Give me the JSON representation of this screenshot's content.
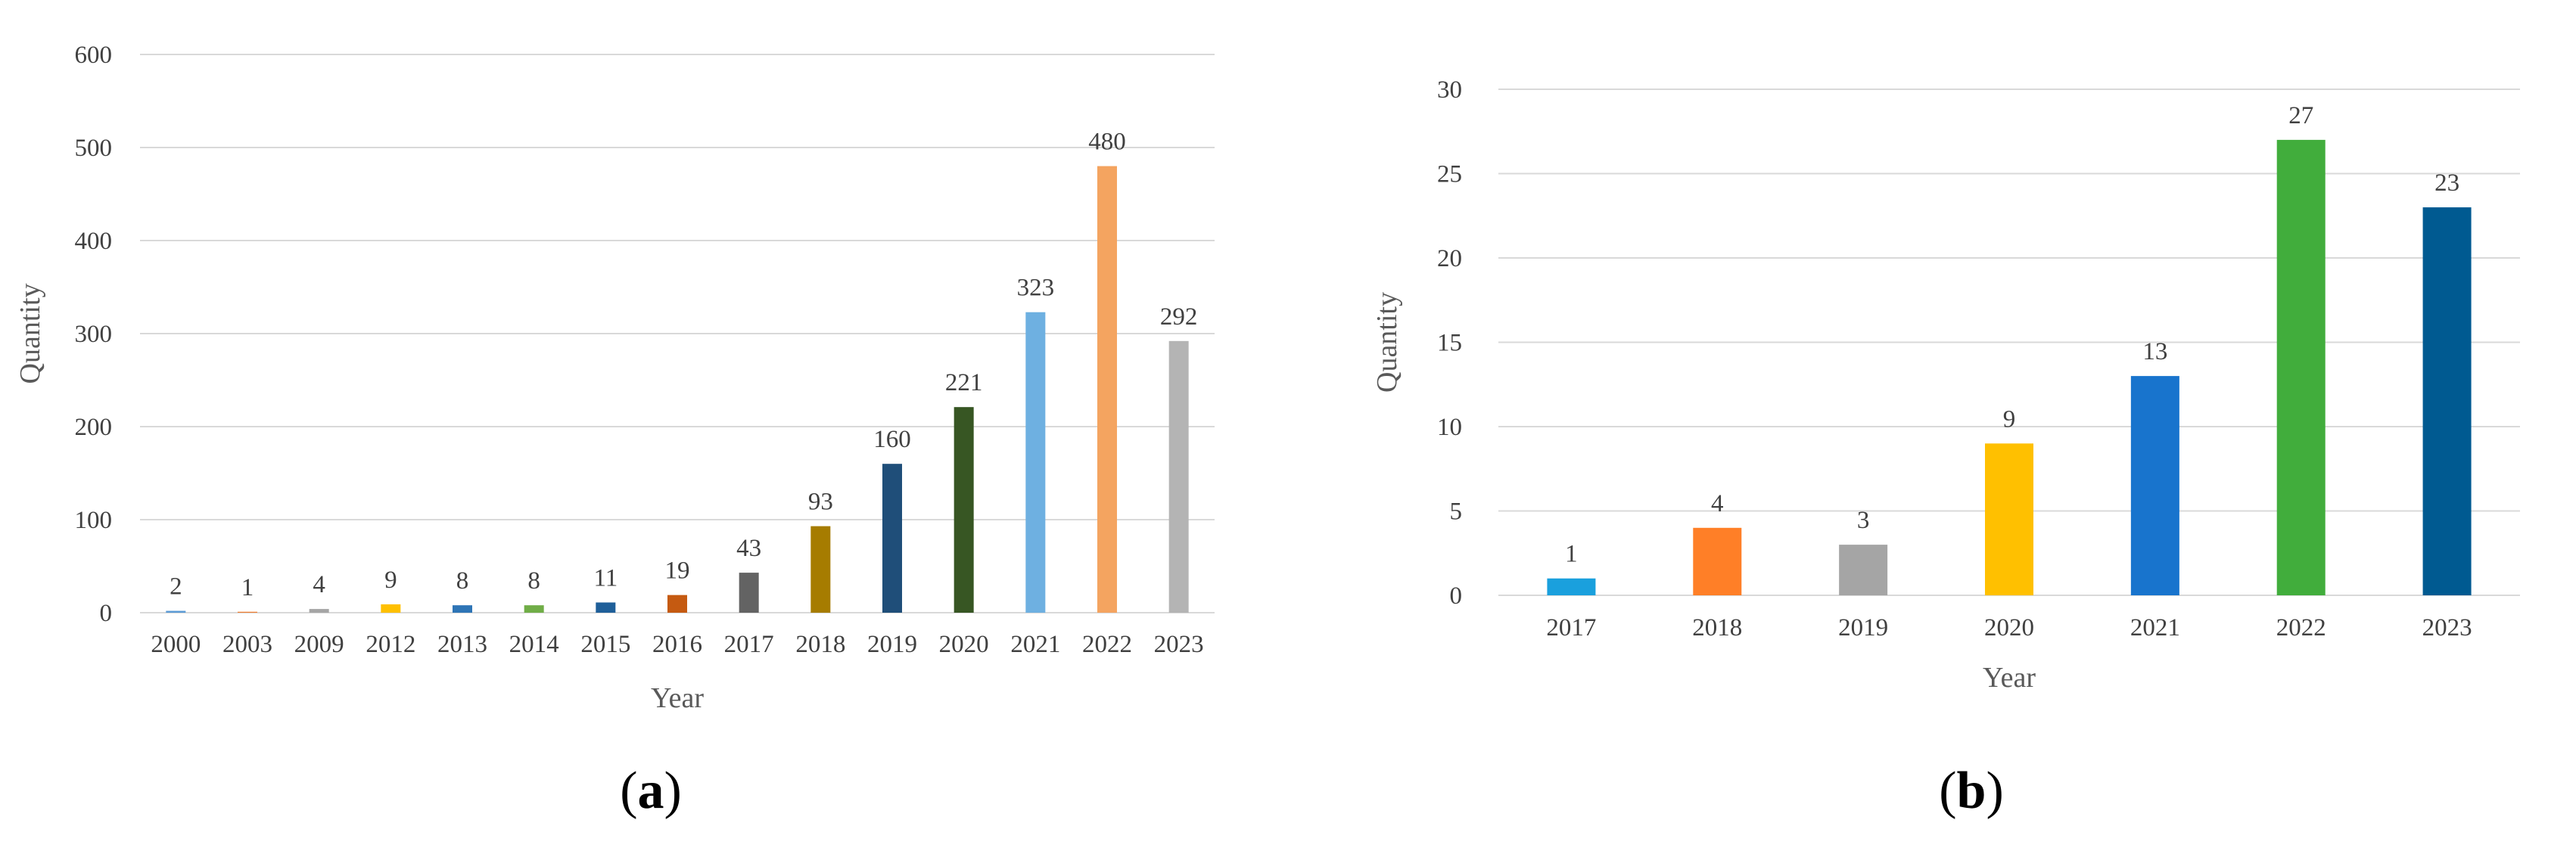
{
  "chart_data": [
    {
      "type": "bar",
      "panel": "a",
      "caption_open": "(",
      "caption_letter": "a",
      "caption_close": ")",
      "xlabel": "Year",
      "ylabel": "Quantity",
      "ylim": [
        0,
        600
      ],
      "yticks": [
        0,
        100,
        200,
        300,
        400,
        500,
        600
      ],
      "grid": true,
      "categories": [
        "2000",
        "2003",
        "2009",
        "2012",
        "2013",
        "2014",
        "2015",
        "2016",
        "2017",
        "2018",
        "2019",
        "2020",
        "2021",
        "2022",
        "2023"
      ],
      "values": [
        2,
        1,
        4,
        9,
        8,
        8,
        11,
        19,
        43,
        93,
        160,
        221,
        323,
        480,
        292
      ],
      "colors": [
        "#5B9BD5",
        "#ED7D31",
        "#A5A5A5",
        "#FFC000",
        "#2E75B6",
        "#70AD47",
        "#1F5F99",
        "#C55A11",
        "#636363",
        "#A67C00",
        "#1F4E79",
        "#375623",
        "#6EB0E1",
        "#F4A460",
        "#B4B4B4"
      ]
    },
    {
      "type": "bar",
      "panel": "b",
      "caption_open": "(",
      "caption_letter": "b",
      "caption_close": ")",
      "xlabel": "Year",
      "ylabel": "Quantity",
      "ylim": [
        0,
        30
      ],
      "yticks": [
        0,
        5,
        10,
        15,
        20,
        25,
        30
      ],
      "grid": true,
      "categories": [
        "2017",
        "2018",
        "2019",
        "2020",
        "2021",
        "2022",
        "2023"
      ],
      "values": [
        1,
        4,
        3,
        9,
        13,
        27,
        23
      ],
      "colors": [
        "#1AA0DD",
        "#FF7F27",
        "#A5A5A5",
        "#FFC000",
        "#1874CD",
        "#41AD3C",
        "#005A91"
      ]
    }
  ]
}
